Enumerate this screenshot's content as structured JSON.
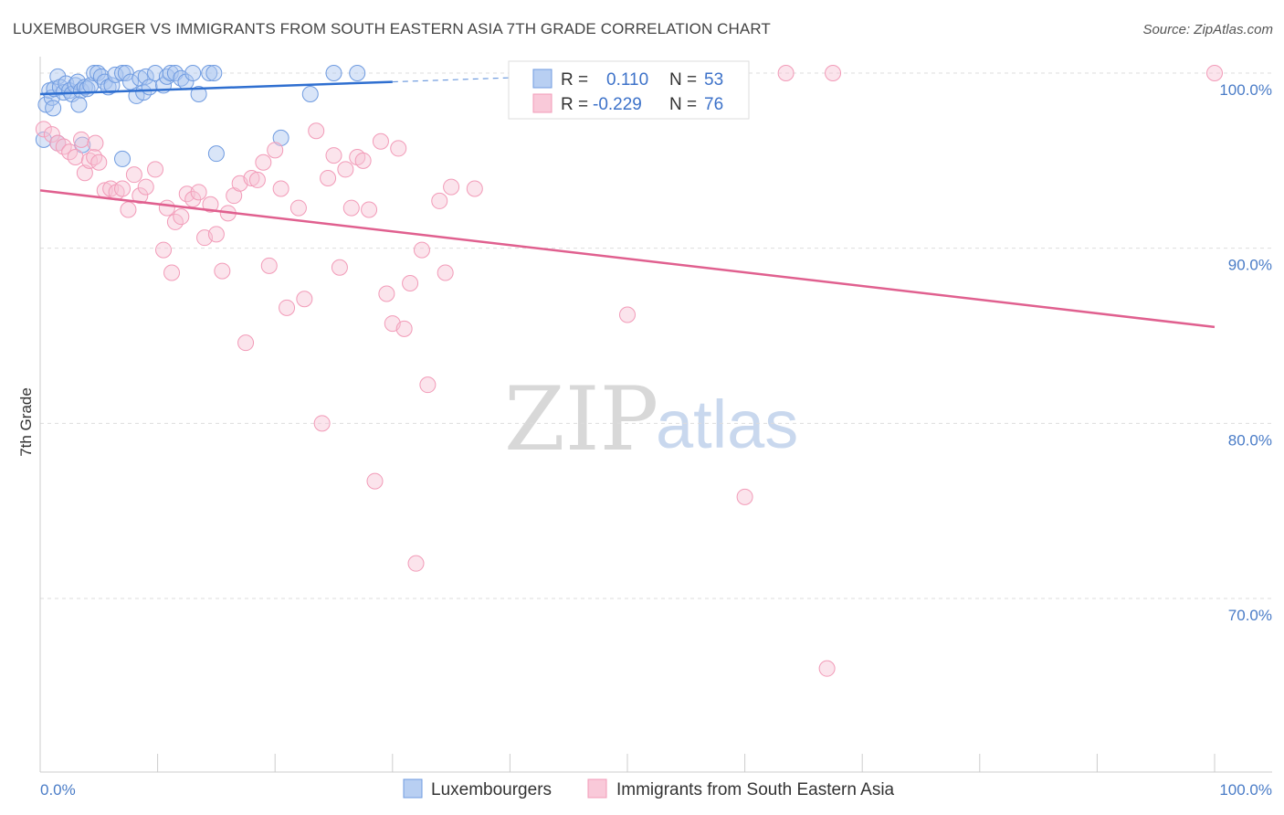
{
  "title": "LUXEMBOURGER VS IMMIGRANTS FROM SOUTH EASTERN ASIA 7TH GRADE CORRELATION CHART",
  "source": "Source: ZipAtlas.com",
  "watermark": {
    "zip": "ZIP",
    "atlas": "atlas"
  },
  "colors": {
    "blue": "#6f9be0",
    "blue_line": "#2f6fd0",
    "pink": "#f29bb8",
    "pink_line": "#e0608f",
    "grid": "#dddddd"
  },
  "legend": {
    "rows": [
      {
        "r_label": "R =",
        "r_value": "0.110",
        "n_label": "N =",
        "n_value": "53"
      },
      {
        "r_label": "R =",
        "r_value": "-0.229",
        "n_label": "N =",
        "n_value": "76"
      }
    ]
  },
  "chart_data": {
    "type": "scatter",
    "title": "LUXEMBOURGER VS IMMIGRANTS FROM SOUTH EASTERN ASIA 7TH GRADE CORRELATION CHART",
    "xlabel": "",
    "ylabel": "7th Grade",
    "xlim": [
      0,
      100
    ],
    "ylim": [
      60.3,
      101.2
    ],
    "x_tick_labels": [
      "0.0%",
      "100.0%"
    ],
    "y_ticks": [
      70,
      80,
      90,
      100
    ],
    "y_tick_labels": [
      "70.0%",
      "80.0%",
      "90.0%",
      "100.0%"
    ],
    "grid": true,
    "legend_position": "top-center",
    "series": [
      {
        "name": "Luxembourgers",
        "color": "#6f9be0",
        "r": 0.11,
        "n": 53,
        "trend": {
          "x": [
            0,
            30
          ],
          "y": [
            98.8,
            99.5
          ],
          "dashed_to": [
            46,
            100
          ]
        },
        "points": [
          [
            0.3,
            96.2
          ],
          [
            0.5,
            98.2
          ],
          [
            0.8,
            99.0
          ],
          [
            1.0,
            98.6
          ],
          [
            1.2,
            99.1
          ],
          [
            1.5,
            99.8
          ],
          [
            1.7,
            99.2
          ],
          [
            2.0,
            98.9
          ],
          [
            2.2,
            99.4
          ],
          [
            2.5,
            99.0
          ],
          [
            2.7,
            98.8
          ],
          [
            3.0,
            99.3
          ],
          [
            3.2,
            99.5
          ],
          [
            3.5,
            99.0
          ],
          [
            3.8,
            99.2
          ],
          [
            4.0,
            99.1
          ],
          [
            4.3,
            99.3
          ],
          [
            4.6,
            100.0
          ],
          [
            4.9,
            100.0
          ],
          [
            5.2,
            99.8
          ],
          [
            5.5,
            99.5
          ],
          [
            5.8,
            99.2
          ],
          [
            6.1,
            99.3
          ],
          [
            6.4,
            99.9
          ],
          [
            7.0,
            100.0
          ],
          [
            7.3,
            100.0
          ],
          [
            7.7,
            99.5
          ],
          [
            8.2,
            98.7
          ],
          [
            8.5,
            99.7
          ],
          [
            8.8,
            98.9
          ],
          [
            9.0,
            99.8
          ],
          [
            9.3,
            99.2
          ],
          [
            9.8,
            100.0
          ],
          [
            10.5,
            99.3
          ],
          [
            10.8,
            99.8
          ],
          [
            11.1,
            100.0
          ],
          [
            11.5,
            100.0
          ],
          [
            12.0,
            99.7
          ],
          [
            12.4,
            99.5
          ],
          [
            13.0,
            100.0
          ],
          [
            13.5,
            98.8
          ],
          [
            14.4,
            100.0
          ],
          [
            14.8,
            100.0
          ],
          [
            15.0,
            95.4
          ],
          [
            1.5,
            96.0
          ],
          [
            3.6,
            95.9
          ],
          [
            7.0,
            95.1
          ],
          [
            20.5,
            96.3
          ],
          [
            23.0,
            98.8
          ],
          [
            25.0,
            100.0
          ],
          [
            27.0,
            100.0
          ],
          [
            1.1,
            98.0
          ],
          [
            3.3,
            98.2
          ]
        ]
      },
      {
        "name": "Immigrants from South Eastern Asia",
        "color": "#f29bb8",
        "r": -0.229,
        "n": 76,
        "trend": {
          "x": [
            0,
            100
          ],
          "y": [
            93.3,
            85.5
          ]
        },
        "points": [
          [
            0.3,
            96.8
          ],
          [
            1.0,
            96.5
          ],
          [
            1.5,
            96.0
          ],
          [
            2.0,
            95.8
          ],
          [
            2.5,
            95.5
          ],
          [
            3.0,
            95.2
          ],
          [
            3.5,
            96.2
          ],
          [
            3.8,
            94.3
          ],
          [
            4.2,
            95.0
          ],
          [
            4.6,
            95.2
          ],
          [
            5.0,
            94.9
          ],
          [
            5.5,
            93.3
          ],
          [
            6.0,
            93.4
          ],
          [
            6.5,
            93.2
          ],
          [
            7.0,
            93.4
          ],
          [
            7.5,
            92.2
          ],
          [
            8.0,
            94.2
          ],
          [
            8.5,
            93.0
          ],
          [
            9.0,
            93.5
          ],
          [
            9.8,
            94.5
          ],
          [
            10.5,
            89.9
          ],
          [
            10.8,
            92.3
          ],
          [
            11.2,
            88.6
          ],
          [
            11.5,
            91.5
          ],
          [
            12.0,
            91.8
          ],
          [
            12.5,
            93.1
          ],
          [
            13.0,
            92.8
          ],
          [
            13.5,
            93.2
          ],
          [
            14.0,
            90.6
          ],
          [
            14.5,
            92.5
          ],
          [
            15.0,
            90.8
          ],
          [
            15.5,
            88.7
          ],
          [
            16.0,
            92.0
          ],
          [
            16.5,
            93.0
          ],
          [
            17.0,
            93.7
          ],
          [
            17.5,
            84.6
          ],
          [
            18.0,
            94.0
          ],
          [
            18.5,
            93.9
          ],
          [
            19.0,
            94.9
          ],
          [
            19.5,
            89.0
          ],
          [
            20.0,
            95.6
          ],
          [
            20.5,
            93.4
          ],
          [
            21.0,
            86.6
          ],
          [
            22.0,
            92.3
          ],
          [
            22.5,
            87.1
          ],
          [
            23.5,
            96.7
          ],
          [
            24.0,
            80.0
          ],
          [
            24.5,
            94.0
          ],
          [
            25.0,
            95.3
          ],
          [
            25.5,
            88.9
          ],
          [
            26.0,
            94.5
          ],
          [
            26.5,
            92.3
          ],
          [
            27.0,
            95.2
          ],
          [
            27.5,
            95.0
          ],
          [
            28.0,
            92.2
          ],
          [
            28.5,
            76.7
          ],
          [
            29.0,
            96.1
          ],
          [
            29.5,
            87.4
          ],
          [
            30.0,
            85.7
          ],
          [
            30.5,
            95.7
          ],
          [
            31.0,
            85.4
          ],
          [
            31.5,
            88.0
          ],
          [
            32.0,
            72.0
          ],
          [
            32.5,
            89.9
          ],
          [
            33.0,
            82.2
          ],
          [
            34.0,
            92.7
          ],
          [
            34.5,
            88.6
          ],
          [
            35.0,
            93.5
          ],
          [
            37.0,
            93.4
          ],
          [
            50.0,
            86.2
          ],
          [
            60.0,
            75.8
          ],
          [
            63.5,
            100.0
          ],
          [
            67.0,
            66.0
          ],
          [
            67.5,
            100.0
          ],
          [
            100.0,
            100.0
          ],
          [
            4.7,
            96.0
          ]
        ]
      }
    ]
  },
  "bottom_legend": [
    {
      "label": "Luxembourgers"
    },
    {
      "label": "Immigrants from South Eastern Asia"
    }
  ]
}
